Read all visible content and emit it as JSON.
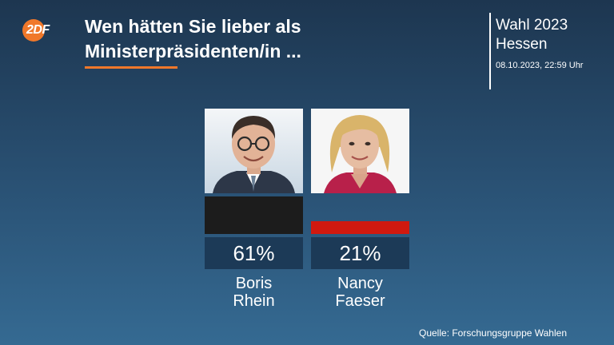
{
  "brand": {
    "logo_text": "2DF"
  },
  "header": {
    "title_line1": "Wen hätten Sie lieber als",
    "title_line2": "Ministerpräsidenten/in ..."
  },
  "context": {
    "line1": "Wahl 2023",
    "line2": "Hessen",
    "timestamp": "08.10.2023, 22:59 Uhr"
  },
  "colors": {
    "accent": "#f0782a",
    "rhein": "#1c1c1c",
    "faeser": "#d0190f",
    "value_box": "#1c3a57"
  },
  "chart_data": {
    "type": "bar",
    "title": "Wen hätten Sie lieber als Ministerpräsidenten/in ...",
    "categories": [
      "Boris Rhein",
      "Nancy Faeser"
    ],
    "values": [
      61,
      21
    ],
    "value_labels": [
      "61%",
      "21%"
    ],
    "name_lines": [
      [
        "Boris",
        "Rhein"
      ],
      [
        "Nancy",
        "Faeser"
      ]
    ],
    "colors": [
      "#1c1c1c",
      "#d0190f"
    ],
    "unit": "%",
    "ylim": [
      0,
      61
    ]
  },
  "source": "Quelle: Forschungsgruppe Wahlen"
}
